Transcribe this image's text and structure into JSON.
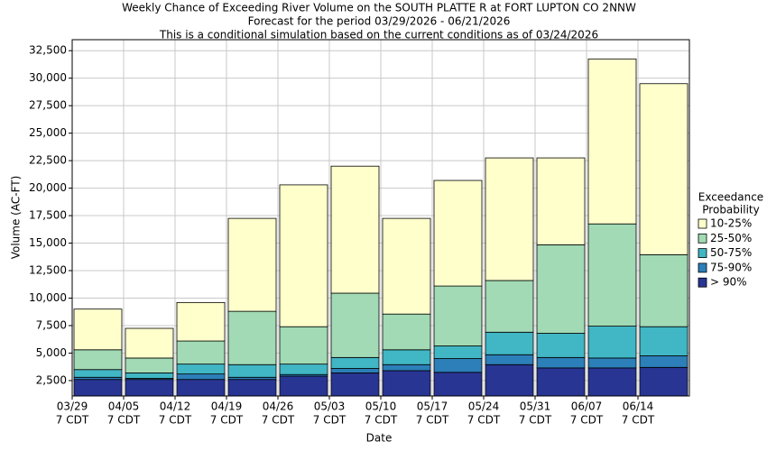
{
  "chart_data": {
    "type": "stacked_bar",
    "title": [
      "Weekly Chance of Exceeding River Volume on the SOUTH PLATTE R at FORT LUPTON CO 2NNW",
      "Forecast for the period 03/29/2026 - 06/21/2026",
      "This is a conditional simulation based on the current conditions as of 03/24/2026"
    ],
    "x_label": "Date",
    "y_label": "Volume (AC-FT)",
    "legend_title": [
      "Exceedance",
      "Probability"
    ],
    "categories": [
      [
        "03/29",
        "7 CDT"
      ],
      [
        "04/05",
        "7 CDT"
      ],
      [
        "04/12",
        "7 CDT"
      ],
      [
        "04/19",
        "7 CDT"
      ],
      [
        "04/26",
        "7 CDT"
      ],
      [
        "05/03",
        "7 CDT"
      ],
      [
        "05/10",
        "7 CDT"
      ],
      [
        "05/17",
        "7 CDT"
      ],
      [
        "05/24",
        "7 CDT"
      ],
      [
        "05/31",
        "7 CDT"
      ],
      [
        "06/07",
        "7 CDT"
      ],
      [
        "06/14",
        "7 CDT"
      ]
    ],
    "series": [
      {
        "name": "> 90%",
        "color": "#283593",
        "values": [
          2600,
          2600,
          2600,
          2600,
          2900,
          3200,
          3400,
          3250,
          3950,
          3650,
          3650,
          3700
        ]
      },
      {
        "name": "75-90%",
        "color": "#2c7fb8",
        "values": [
          200,
          100,
          500,
          200,
          150,
          400,
          550,
          1250,
          900,
          950,
          900,
          1050
        ]
      },
      {
        "name": "50-75%",
        "color": "#41b6c4",
        "values": [
          700,
          500,
          900,
          1150,
          950,
          1000,
          1350,
          1150,
          2050,
          2200,
          2900,
          2650
        ]
      },
      {
        "name": "25-50%",
        "color": "#a1dab4",
        "values": [
          1800,
          1350,
          2100,
          4850,
          3400,
          5850,
          3250,
          5450,
          4700,
          8050,
          9300,
          6550
        ]
      },
      {
        "name": "10-25%",
        "color": "#ffffcc",
        "values": [
          3700,
          2700,
          3500,
          8450,
          12900,
          11550,
          8700,
          9600,
          11150,
          7900,
          15000,
          15550
        ]
      }
    ],
    "ylim": [
      1100,
      33500
    ],
    "yticks": [
      {
        "value": 2500,
        "label": "2,500"
      },
      {
        "value": 5000,
        "label": "5,000"
      },
      {
        "value": 7500,
        "label": "7,500"
      },
      {
        "value": 10000,
        "label": "10,000"
      },
      {
        "value": 12500,
        "label": "12,500"
      },
      {
        "value": 15000,
        "label": "15,000"
      },
      {
        "value": 17500,
        "label": "17,500"
      },
      {
        "value": 20000,
        "label": "20,000"
      },
      {
        "value": 22500,
        "label": "22,500"
      },
      {
        "value": 25000,
        "label": "25,000"
      },
      {
        "value": 27500,
        "label": "27,500"
      },
      {
        "value": 30000,
        "label": "30,000"
      },
      {
        "value": 32500,
        "label": "32,500"
      }
    ],
    "grid": true
  }
}
